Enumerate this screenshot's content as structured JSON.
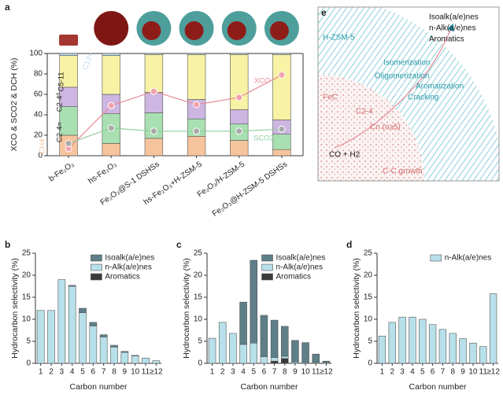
{
  "chart_data": [
    {
      "type": "bar",
      "panel": "a",
      "stacked": true,
      "ylabel": "XCO & SCO2 & DCH (%)",
      "categories": [
        "b-Fe₂O₃",
        "hs-Fe₂O₃",
        "Fe₂O₃@S-1 DSHSs",
        "hs-Fe₂O₃+H-ZSM-5",
        "Fe₂O₃/H-ZSM-5",
        "Fe₂O₃@H-ZSM-5 DSHSs"
      ],
      "ylim": [
        0,
        100
      ],
      "yticks": [
        0,
        20,
        40,
        60,
        80,
        100
      ],
      "series": [
        {
          "name": "CH4",
          "color": "#f6c49c",
          "values": [
            20,
            12,
            17,
            19,
            15,
            6
          ]
        },
        {
          "name": "C2-4=",
          "color": "#a9e0b2",
          "values": [
            28,
            29,
            25,
            17,
            16,
            15
          ]
        },
        {
          "name": "C2-4⁰",
          "color": "#cdb6e2",
          "values": [
            19,
            19,
            20,
            19,
            14,
            14
          ]
        },
        {
          "name": "C5-11",
          "color": "#f8f2a4",
          "values": [
            31,
            38,
            37,
            44,
            54,
            64
          ]
        },
        {
          "name": "C12+",
          "color": "#bcd9f0",
          "values": [
            2,
            2,
            1,
            1,
            1,
            1
          ]
        },
        {
          "name": "XCO",
          "type": "line",
          "color": "#e88a97",
          "values": [
            7,
            49,
            63,
            50,
            57,
            79
          ]
        },
        {
          "name": "SCO2",
          "type": "line",
          "color": "#8fcf9a",
          "values": [
            12,
            27,
            24,
            24,
            24,
            26
          ]
        }
      ]
    },
    {
      "type": "bar",
      "panel": "b",
      "stacked": true,
      "xlabel": "Carbon number",
      "ylabel": "Hydrocarbon selectivity (%)",
      "categories": [
        "1",
        "2",
        "3",
        "4",
        "5",
        "6",
        "7",
        "8",
        "9",
        "10",
        "11",
        "≥12"
      ],
      "ylim": [
        0,
        25
      ],
      "yticks": [
        0,
        5,
        10,
        15,
        20,
        25
      ],
      "legend": "upper right",
      "series": [
        {
          "name": "Isoalk(a/e)nes",
          "color": "#5e7f88",
          "values": [
            0,
            0,
            0,
            0.2,
            1,
            0.8,
            0.5,
            0.4,
            0.2,
            0.1,
            0,
            0
          ]
        },
        {
          "name": "n-Alk(a/e)nes",
          "color": "#b8e0ea",
          "values": [
            12,
            12,
            19,
            17.5,
            11.5,
            8.5,
            6,
            3.7,
            2.5,
            1.7,
            1.2,
            0.6
          ]
        },
        {
          "name": "Aromatics",
          "color": "#3a3a3a",
          "values": [
            0,
            0,
            0,
            0,
            0,
            0,
            0,
            0,
            0,
            0,
            0,
            0
          ]
        }
      ]
    },
    {
      "type": "bar",
      "panel": "c",
      "stacked": true,
      "xlabel": "Carbon number",
      "ylabel": "Hydrocarbon selectivity (%)",
      "categories": [
        "1",
        "2",
        "3",
        "4",
        "5",
        "6",
        "7",
        "8",
        "9",
        "10",
        "11",
        "≥12"
      ],
      "ylim": [
        0,
        25
      ],
      "yticks": [
        0,
        5,
        10,
        15,
        20,
        25
      ],
      "legend": "upper right",
      "series": [
        {
          "name": "Isoalk(a/e)nes",
          "color": "#5e7f88",
          "values": [
            0,
            0,
            0,
            9.6,
            18.8,
            9.4,
            8.5,
            6.8,
            4.9,
            4.5,
            1.9,
            0.3
          ]
        },
        {
          "name": "n-Alk(a/e)nes",
          "color": "#b8e0ea",
          "values": [
            5.7,
            9.3,
            6.8,
            4.3,
            4.6,
            1.5,
            0.8,
            0.5,
            0.3,
            0.2,
            0.2,
            0.2
          ]
        },
        {
          "name": "Aromatics",
          "color": "#3a3a3a",
          "values": [
            0,
            0,
            0,
            0,
            0,
            0,
            0.5,
            1.1,
            0,
            0,
            0,
            0
          ]
        }
      ]
    },
    {
      "type": "bar",
      "panel": "d",
      "stacked": true,
      "xlabel": "Carbon number",
      "ylabel": "Hydrocarbon selectivity (%)",
      "categories": [
        "1",
        "2",
        "3",
        "4",
        "5",
        "6",
        "7",
        "8",
        "9",
        "10",
        "11",
        "≥12"
      ],
      "ylim": [
        0,
        25
      ],
      "yticks": [
        0,
        5,
        10,
        15,
        20,
        25
      ],
      "legend": "upper right",
      "series": [
        {
          "name": "n-Alk(a/e)nes",
          "color": "#b8e0ea",
          "values": [
            6.2,
            9.3,
            10.5,
            10.5,
            10,
            8.8,
            7.7,
            6.8,
            5.6,
            4.6,
            3.8,
            15.8
          ]
        }
      ]
    }
  ],
  "diagram": {
    "panel": "e",
    "labels": [
      "H-ZSM-5",
      "Isoalk(a/e)nes",
      "n-Alk(a/e)nes",
      "Aromatics",
      "Isomerization",
      "Oligomerization",
      "Aromatization",
      "Cracking",
      "FeC",
      "C2-4",
      "Cn (n≥5)",
      "CO + H2",
      "C-C growth"
    ]
  }
}
